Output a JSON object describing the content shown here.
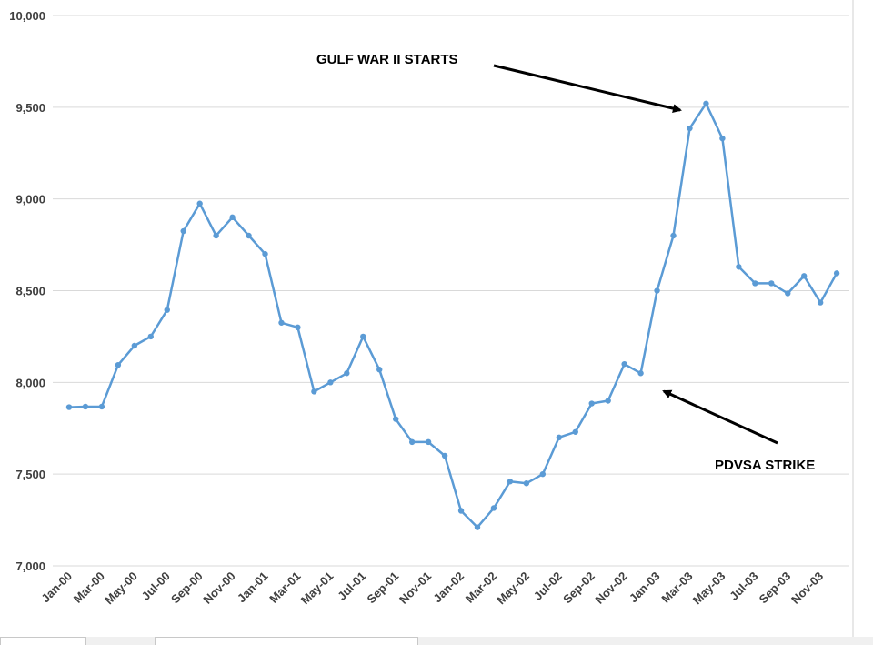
{
  "colors": {
    "series": "#5b9bd5",
    "grid": "#d9d9d9",
    "axis_text": "#404040",
    "arrow": "#000000"
  },
  "chart_data": {
    "type": "line",
    "title": "",
    "xlabel": "",
    "ylabel": "",
    "ylim": [
      7000,
      10000
    ],
    "yticks": [
      "7,000",
      "7,500",
      "8,000",
      "8,500",
      "9,000",
      "9,500",
      "10,000"
    ],
    "ytick_values": [
      7000,
      7500,
      8000,
      8500,
      9000,
      9500,
      10000
    ],
    "xtick_labels": [
      "Jan-00",
      "Mar-00",
      "May-00",
      "Jul-00",
      "Sep-00",
      "Nov-00",
      "Jan-01",
      "Mar-01",
      "May-01",
      "Jul-01",
      "Sep-01",
      "Nov-01",
      "Jan-02",
      "Mar-02",
      "May-02",
      "Jul-02",
      "Sep-02",
      "Nov-02",
      "Jan-03",
      "Mar-03",
      "May-03",
      "Jul-03",
      "Sep-03",
      "Nov-03"
    ],
    "grid": "horizontal",
    "legend": "none",
    "series": [
      {
        "x": [
          "Jan-00",
          "Feb-00",
          "Mar-00",
          "Apr-00",
          "May-00",
          "Jun-00",
          "Jul-00",
          "Aug-00",
          "Sep-00",
          "Oct-00",
          "Nov-00",
          "Dec-00",
          "Jan-01",
          "Feb-01",
          "Mar-01",
          "Apr-01",
          "May-01",
          "Jun-01",
          "Jul-01",
          "Aug-01",
          "Sep-01",
          "Oct-01",
          "Nov-01",
          "Dec-01",
          "Jan-02",
          "Feb-02",
          "Mar-02",
          "Apr-02",
          "May-02",
          "Jun-02",
          "Jul-02",
          "Aug-02",
          "Sep-02",
          "Oct-02",
          "Nov-02",
          "Dec-02",
          "Jan-03",
          "Feb-03",
          "Mar-03",
          "Apr-03",
          "May-03",
          "Jun-03",
          "Jul-03",
          "Aug-03",
          "Sep-03",
          "Oct-03",
          "Nov-03",
          "Dec-03"
        ],
        "values": [
          7865,
          7868,
          7868,
          8095,
          8200,
          8250,
          8395,
          8825,
          8975,
          8800,
          8900,
          8800,
          8700,
          8325,
          8300,
          7950,
          8000,
          8050,
          8250,
          8070,
          7800,
          7675,
          7675,
          7600,
          7300,
          7210,
          7315,
          7460,
          7450,
          7500,
          7700,
          7730,
          7885,
          7900,
          8100,
          8050,
          8500,
          8800,
          9385,
          9520,
          9330,
          8630,
          8540,
          8540,
          8485,
          8580,
          8435,
          8595
        ]
      }
    ],
    "annotations": [
      {
        "text": "GULF WAR II STARTS",
        "points_to": "Mar-03"
      },
      {
        "text": "PDVSA STRIKE",
        "points_to": "Dec-02"
      }
    ]
  }
}
